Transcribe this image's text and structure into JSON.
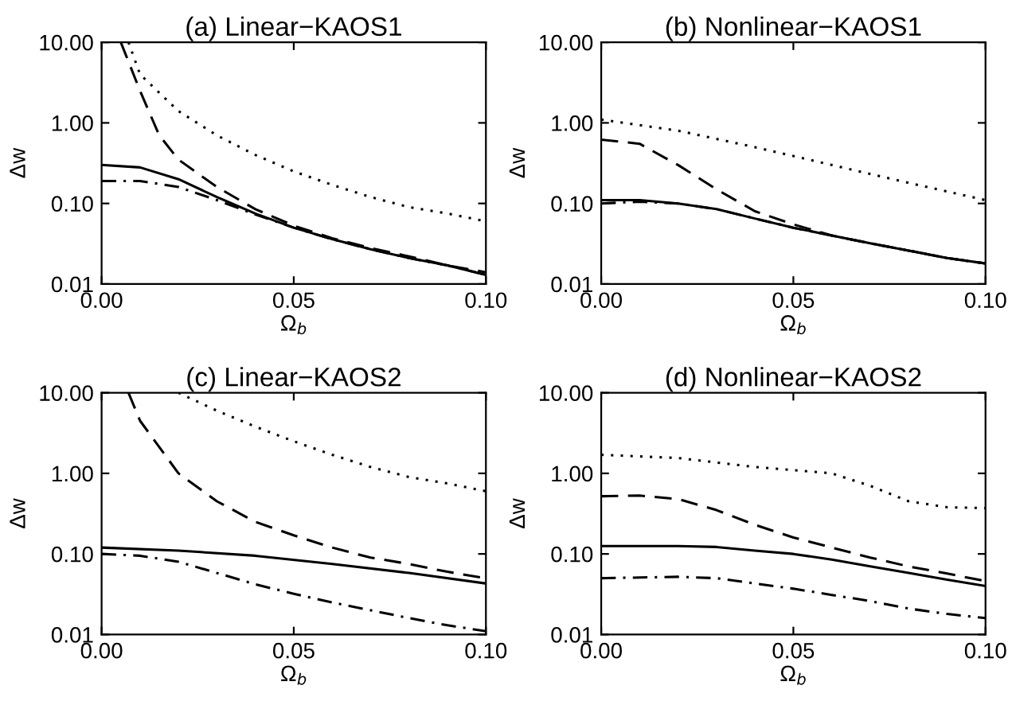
{
  "chart_data": [
    {
      "type": "line",
      "title": "(a) Linear−KAOS1",
      "xlabel": "Ω$_{b}$",
      "ylabel": "Δw",
      "log": "y",
      "grid": false,
      "xlim": [
        0,
        0.1
      ],
      "ylim": [
        0.01,
        10
      ],
      "xticks": [
        {
          "value": 0,
          "label": "0.00"
        },
        {
          "value": 0.05,
          "label": "0.05"
        },
        {
          "value": 0.1,
          "label": "0.10"
        }
      ],
      "yticks": [
        {
          "value": 0.01,
          "label": "0.01"
        },
        {
          "value": 0.1,
          "label": "0.10"
        },
        {
          "value": 1,
          "label": "1.00"
        },
        {
          "value": 10,
          "label": "10.00"
        }
      ],
      "series": [
        {
          "color": "#000000",
          "line_style": "solid",
          "x": [
            0,
            0.01,
            0.02,
            0.03,
            0.04,
            0.05,
            0.06,
            0.07,
            0.08,
            0.09,
            0.1
          ],
          "values": [
            0.3,
            0.28,
            0.2,
            0.12,
            0.075,
            0.05,
            0.036,
            0.027,
            0.021,
            0.017,
            0.013
          ]
        },
        {
          "color": "#000000",
          "line_style": "dashed",
          "x": [
            0.005,
            0.01,
            0.015,
            0.02,
            0.03,
            0.04,
            0.05,
            0.06,
            0.07,
            0.08,
            0.09,
            0.1
          ],
          "values": [
            10,
            2.5,
            0.7,
            0.35,
            0.16,
            0.085,
            0.053,
            0.037,
            0.028,
            0.022,
            0.017,
            0.014
          ]
        },
        {
          "color": "#000000",
          "line_style": "dotted",
          "x": [
            0.007,
            0.01,
            0.02,
            0.03,
            0.04,
            0.05,
            0.06,
            0.07,
            0.08,
            0.09,
            0.1
          ],
          "values": [
            10,
            4,
            1.4,
            0.7,
            0.4,
            0.25,
            0.17,
            0.12,
            0.09,
            0.075,
            0.06
          ]
        },
        {
          "color": "#000000",
          "line_style": "dashdot",
          "x": [
            0,
            0.01,
            0.02,
            0.03,
            0.04,
            0.05,
            0.06,
            0.07,
            0.08,
            0.09,
            0.1
          ],
          "values": [
            0.19,
            0.19,
            0.16,
            0.11,
            0.073,
            0.05,
            0.036,
            0.027,
            0.021,
            0.017,
            0.013
          ]
        }
      ]
    },
    {
      "type": "line",
      "title": "(b) Nonlinear−KAOS1",
      "xlabel": "Ω$_{b}$",
      "ylabel": "Δw",
      "log": "y",
      "grid": false,
      "xlim": [
        0,
        0.1
      ],
      "ylim": [
        0.01,
        10
      ],
      "xticks": [
        {
          "value": 0,
          "label": "0.00"
        },
        {
          "value": 0.05,
          "label": "0.05"
        },
        {
          "value": 0.1,
          "label": "0.10"
        }
      ],
      "yticks": [
        {
          "value": 0.01,
          "label": "0.01"
        },
        {
          "value": 0.1,
          "label": "0.10"
        },
        {
          "value": 1,
          "label": "1.00"
        },
        {
          "value": 10,
          "label": "10.00"
        }
      ],
      "series": [
        {
          "color": "#000000",
          "line_style": "solid",
          "x": [
            0,
            0.01,
            0.02,
            0.03,
            0.04,
            0.05,
            0.06,
            0.07,
            0.08,
            0.09,
            0.1
          ],
          "values": [
            0.11,
            0.11,
            0.1,
            0.085,
            0.065,
            0.05,
            0.04,
            0.032,
            0.026,
            0.021,
            0.018
          ]
        },
        {
          "color": "#000000",
          "line_style": "dashed",
          "x": [
            0,
            0.01,
            0.02,
            0.03,
            0.04,
            0.05,
            0.06,
            0.07,
            0.08,
            0.09,
            0.1
          ],
          "values": [
            0.62,
            0.55,
            0.3,
            0.15,
            0.08,
            0.055,
            0.04,
            0.032,
            0.026,
            0.021,
            0.018
          ]
        },
        {
          "color": "#000000",
          "line_style": "dotted",
          "x": [
            0,
            0.02,
            0.04,
            0.06,
            0.08,
            0.1
          ],
          "values": [
            1.1,
            0.8,
            0.5,
            0.3,
            0.18,
            0.11
          ]
        },
        {
          "color": "#000000",
          "line_style": "dashdot",
          "x": [
            0,
            0.01,
            0.02,
            0.03,
            0.04,
            0.05,
            0.06,
            0.07,
            0.08,
            0.09,
            0.1
          ],
          "values": [
            0.1,
            0.105,
            0.1,
            0.085,
            0.065,
            0.05,
            0.04,
            0.032,
            0.026,
            0.021,
            0.018
          ]
        }
      ]
    },
    {
      "type": "line",
      "title": "(c) Linear−KAOS2",
      "xlabel": "Ω$_{b}$",
      "ylabel": "Δw",
      "log": "y",
      "grid": false,
      "xlim": [
        0,
        0.1
      ],
      "ylim": [
        0.01,
        10
      ],
      "xticks": [
        {
          "value": 0,
          "label": "0.00"
        },
        {
          "value": 0.05,
          "label": "0.05"
        },
        {
          "value": 0.1,
          "label": "0.10"
        }
      ],
      "yticks": [
        {
          "value": 0.01,
          "label": "0.01"
        },
        {
          "value": 0.1,
          "label": "0.10"
        },
        {
          "value": 1,
          "label": "1.00"
        },
        {
          "value": 10,
          "label": "10.00"
        }
      ],
      "series": [
        {
          "color": "#000000",
          "line_style": "solid",
          "x": [
            0,
            0.02,
            0.04,
            0.06,
            0.08,
            0.1
          ],
          "values": [
            0.12,
            0.11,
            0.095,
            0.075,
            0.058,
            0.043
          ]
        },
        {
          "color": "#000000",
          "line_style": "dashed",
          "x": [
            0.007,
            0.01,
            0.02,
            0.03,
            0.04,
            0.05,
            0.06,
            0.07,
            0.08,
            0.09,
            0.1
          ],
          "values": [
            10,
            4.5,
            1.0,
            0.45,
            0.25,
            0.17,
            0.12,
            0.09,
            0.075,
            0.06,
            0.05
          ]
        },
        {
          "color": "#000000",
          "line_style": "dotted",
          "x": [
            0.02,
            0.03,
            0.04,
            0.05,
            0.06,
            0.07,
            0.08,
            0.09,
            0.1
          ],
          "values": [
            10,
            6,
            3.8,
            2.5,
            1.7,
            1.2,
            0.9,
            0.75,
            0.6
          ]
        },
        {
          "color": "#000000",
          "line_style": "dashdot",
          "x": [
            0,
            0.01,
            0.02,
            0.03,
            0.04,
            0.05,
            0.06,
            0.07,
            0.08,
            0.09,
            0.1
          ],
          "values": [
            0.1,
            0.095,
            0.08,
            0.058,
            0.042,
            0.032,
            0.025,
            0.02,
            0.016,
            0.013,
            0.011
          ]
        }
      ]
    },
    {
      "type": "line",
      "title": "(d) Nonlinear−KAOS2",
      "xlabel": "Ω$_{b}$",
      "ylabel": "Δw",
      "log": "y",
      "grid": false,
      "xlim": [
        0,
        0.1
      ],
      "ylim": [
        0.01,
        10
      ],
      "xticks": [
        {
          "value": 0,
          "label": "0.00"
        },
        {
          "value": 0.05,
          "label": "0.05"
        },
        {
          "value": 0.1,
          "label": "0.10"
        }
      ],
      "yticks": [
        {
          "value": 0.01,
          "label": "0.01"
        },
        {
          "value": 0.1,
          "label": "0.10"
        },
        {
          "value": 1,
          "label": "1.00"
        },
        {
          "value": 10,
          "label": "10.00"
        }
      ],
      "series": [
        {
          "color": "#000000",
          "line_style": "solid",
          "x": [
            0,
            0.02,
            0.03,
            0.04,
            0.05,
            0.06,
            0.07,
            0.08,
            0.09,
            0.1
          ],
          "values": [
            0.125,
            0.125,
            0.122,
            0.11,
            0.1,
            0.085,
            0.07,
            0.058,
            0.048,
            0.04
          ]
        },
        {
          "color": "#000000",
          "line_style": "dashed",
          "x": [
            0,
            0.01,
            0.02,
            0.03,
            0.04,
            0.05,
            0.06,
            0.07,
            0.08,
            0.09,
            0.1
          ],
          "values": [
            0.52,
            0.53,
            0.48,
            0.35,
            0.23,
            0.16,
            0.12,
            0.09,
            0.07,
            0.057,
            0.046
          ]
        },
        {
          "color": "#000000",
          "line_style": "dotted",
          "x": [
            0,
            0.02,
            0.04,
            0.06,
            0.07,
            0.08,
            0.09,
            0.1
          ],
          "values": [
            1.7,
            1.55,
            1.2,
            1.0,
            0.7,
            0.45,
            0.38,
            0.37
          ]
        },
        {
          "color": "#000000",
          "line_style": "dashdot",
          "x": [
            0,
            0.02,
            0.03,
            0.04,
            0.05,
            0.06,
            0.07,
            0.08,
            0.09,
            0.1
          ],
          "values": [
            0.05,
            0.052,
            0.05,
            0.043,
            0.037,
            0.031,
            0.026,
            0.021,
            0.018,
            0.016
          ]
        }
      ]
    }
  ]
}
